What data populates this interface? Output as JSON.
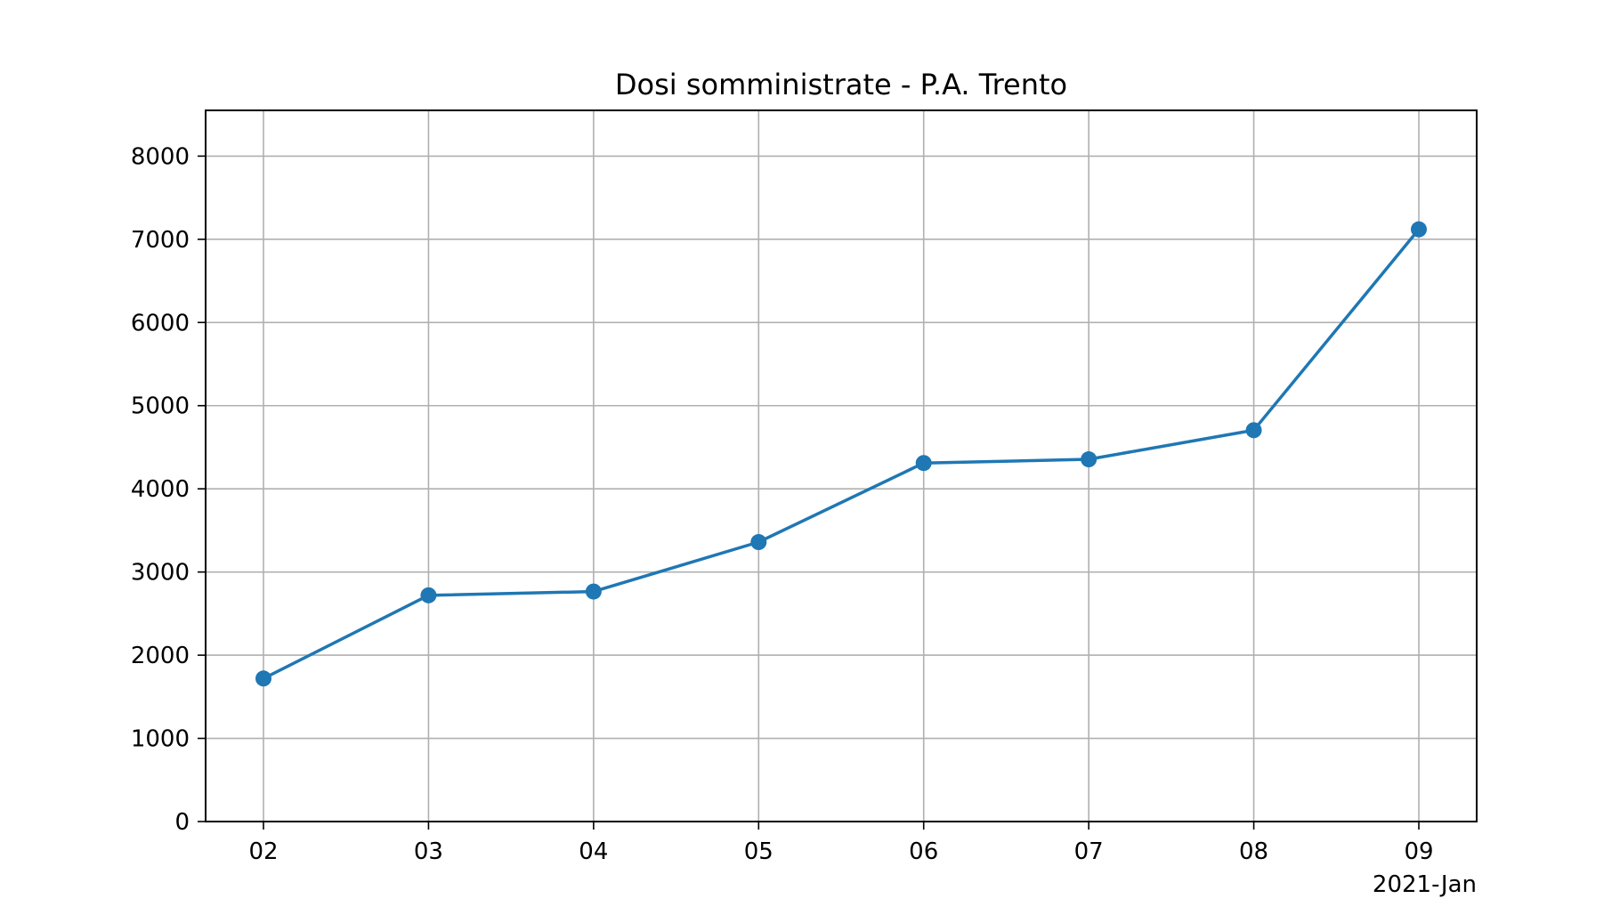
{
  "chart_data": {
    "type": "line",
    "title": "Dosi somministrate - P.A. Trento",
    "xlabel": "",
    "ylabel": "",
    "x_offset_label": "2021-Jan",
    "categories": [
      "02",
      "03",
      "04",
      "05",
      "06",
      "07",
      "08",
      "09"
    ],
    "x": [
      "2021-01-02",
      "2021-01-03",
      "2021-01-04",
      "2021-01-05",
      "2021-01-06",
      "2021-01-07",
      "2021-01-08",
      "2021-01-09"
    ],
    "series": [
      {
        "values": [
          1720,
          2720,
          2765,
          3360,
          4310,
          4355,
          4705,
          7120
        ],
        "color": "#1f77b4",
        "marker": "circle"
      }
    ],
    "ylim": [
      0,
      8550
    ],
    "yticks": [
      0,
      1000,
      2000,
      3000,
      4000,
      5000,
      6000,
      7000,
      8000
    ],
    "ytick_labels": [
      "0",
      "1000",
      "2000",
      "3000",
      "4000",
      "5000",
      "6000",
      "7000",
      "8000"
    ],
    "grid": true,
    "legend": "none"
  }
}
